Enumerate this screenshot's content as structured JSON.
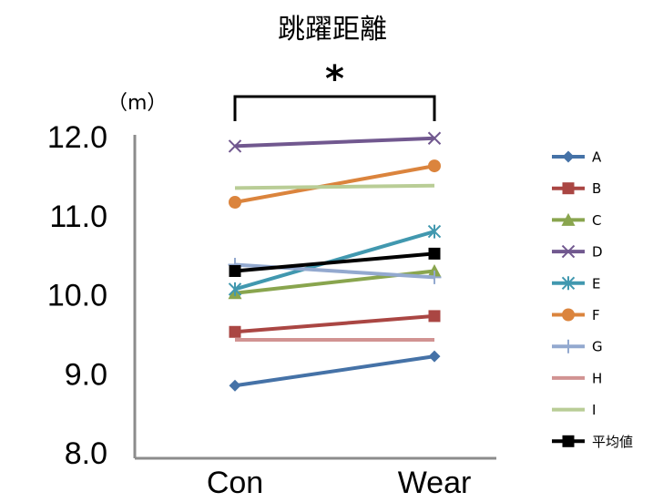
{
  "chart_data": {
    "type": "line",
    "title": "跳躍距離",
    "unit_label": "（m）",
    "categories": [
      "Con",
      "Wear"
    ],
    "ylim": [
      8.0,
      12.0
    ],
    "yticks": [
      "8.0",
      "9.0",
      "10.0",
      "11.0",
      "12.0"
    ],
    "grid": false,
    "legend_position": "right",
    "significance": {
      "between": [
        "Con",
        "Wear"
      ],
      "label": "*"
    },
    "series": [
      {
        "name": "A",
        "values": [
          8.85,
          9.22
        ],
        "color": "#4572A7",
        "marker": "diamond"
      },
      {
        "name": "B",
        "values": [
          9.53,
          9.73
        ],
        "color": "#AA4643",
        "marker": "square"
      },
      {
        "name": "C",
        "values": [
          10.02,
          10.3
        ],
        "color": "#89A54E",
        "marker": "triangle"
      },
      {
        "name": "D",
        "values": [
          11.88,
          11.98
        ],
        "color": "#71588F",
        "marker": "x"
      },
      {
        "name": "E",
        "values": [
          10.07,
          10.8
        ],
        "color": "#4198AF",
        "marker": "asterisk"
      },
      {
        "name": "F",
        "values": [
          11.17,
          11.63
        ],
        "color": "#DB843D",
        "marker": "circle"
      },
      {
        "name": "G",
        "values": [
          10.38,
          10.22
        ],
        "color": "#93A9CF",
        "marker": "plus"
      },
      {
        "name": "H",
        "values": [
          9.43,
          9.43
        ],
        "color": "#D19392",
        "marker": "none"
      },
      {
        "name": "I",
        "values": [
          11.35,
          11.38
        ],
        "color": "#B9CD96",
        "marker": "none"
      },
      {
        "name": "平均値",
        "values": [
          10.3,
          10.52
        ],
        "color": "#000000",
        "marker": "square"
      }
    ]
  }
}
